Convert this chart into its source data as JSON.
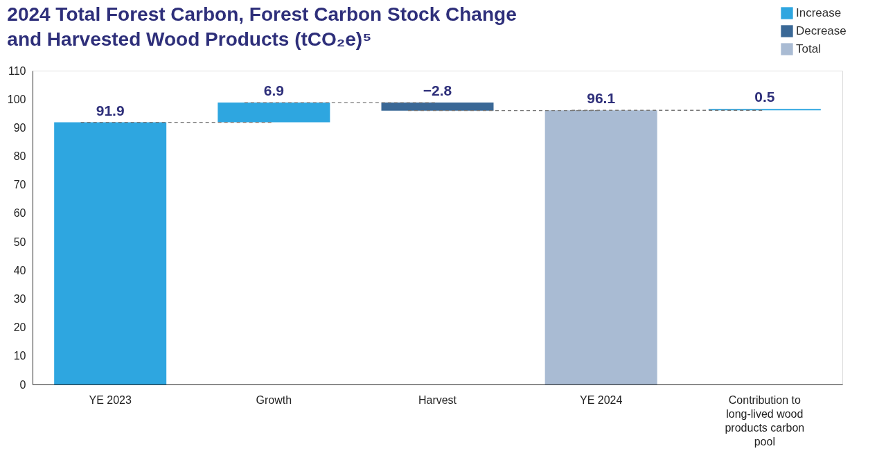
{
  "chart_data": {
    "type": "bar",
    "title": "2024 Total Forest Carbon, Forest Carbon Stock Change\nand Harvested Wood Products (tCO₂e)⁵",
    "categories": [
      "YE 2023",
      "Growth",
      "Harvest",
      "YE 2024",
      "Contribution to long-lived wood products carbon pool"
    ],
    "series": [
      {
        "name": "Increase",
        "color": "#2ea6e0",
        "values": [
          91.9,
          6.9,
          null,
          null,
          0.5
        ],
        "base": [
          0,
          91.9,
          null,
          null,
          96.1
        ],
        "value_labels": [
          "91.9",
          "6.9",
          null,
          null,
          "0.5"
        ]
      },
      {
        "name": "Decrease",
        "color": "#3a6896",
        "values": [
          null,
          null,
          -2.8,
          null,
          null
        ],
        "base": [
          null,
          null,
          98.8,
          null,
          null
        ],
        "value_labels": [
          null,
          null,
          "−2.8",
          null,
          null
        ]
      },
      {
        "name": "Total",
        "color": "#a9bbd3",
        "values": [
          null,
          null,
          null,
          96.1,
          null
        ],
        "base": [
          null,
          null,
          null,
          0,
          null
        ],
        "value_labels": [
          null,
          null,
          null,
          "96.1",
          null
        ]
      }
    ],
    "ylim": [
      0,
      110
    ],
    "yticks": [
      0,
      10,
      20,
      30,
      40,
      50,
      60,
      70,
      80,
      90,
      100,
      110
    ],
    "grid": false,
    "legend": "top right"
  }
}
